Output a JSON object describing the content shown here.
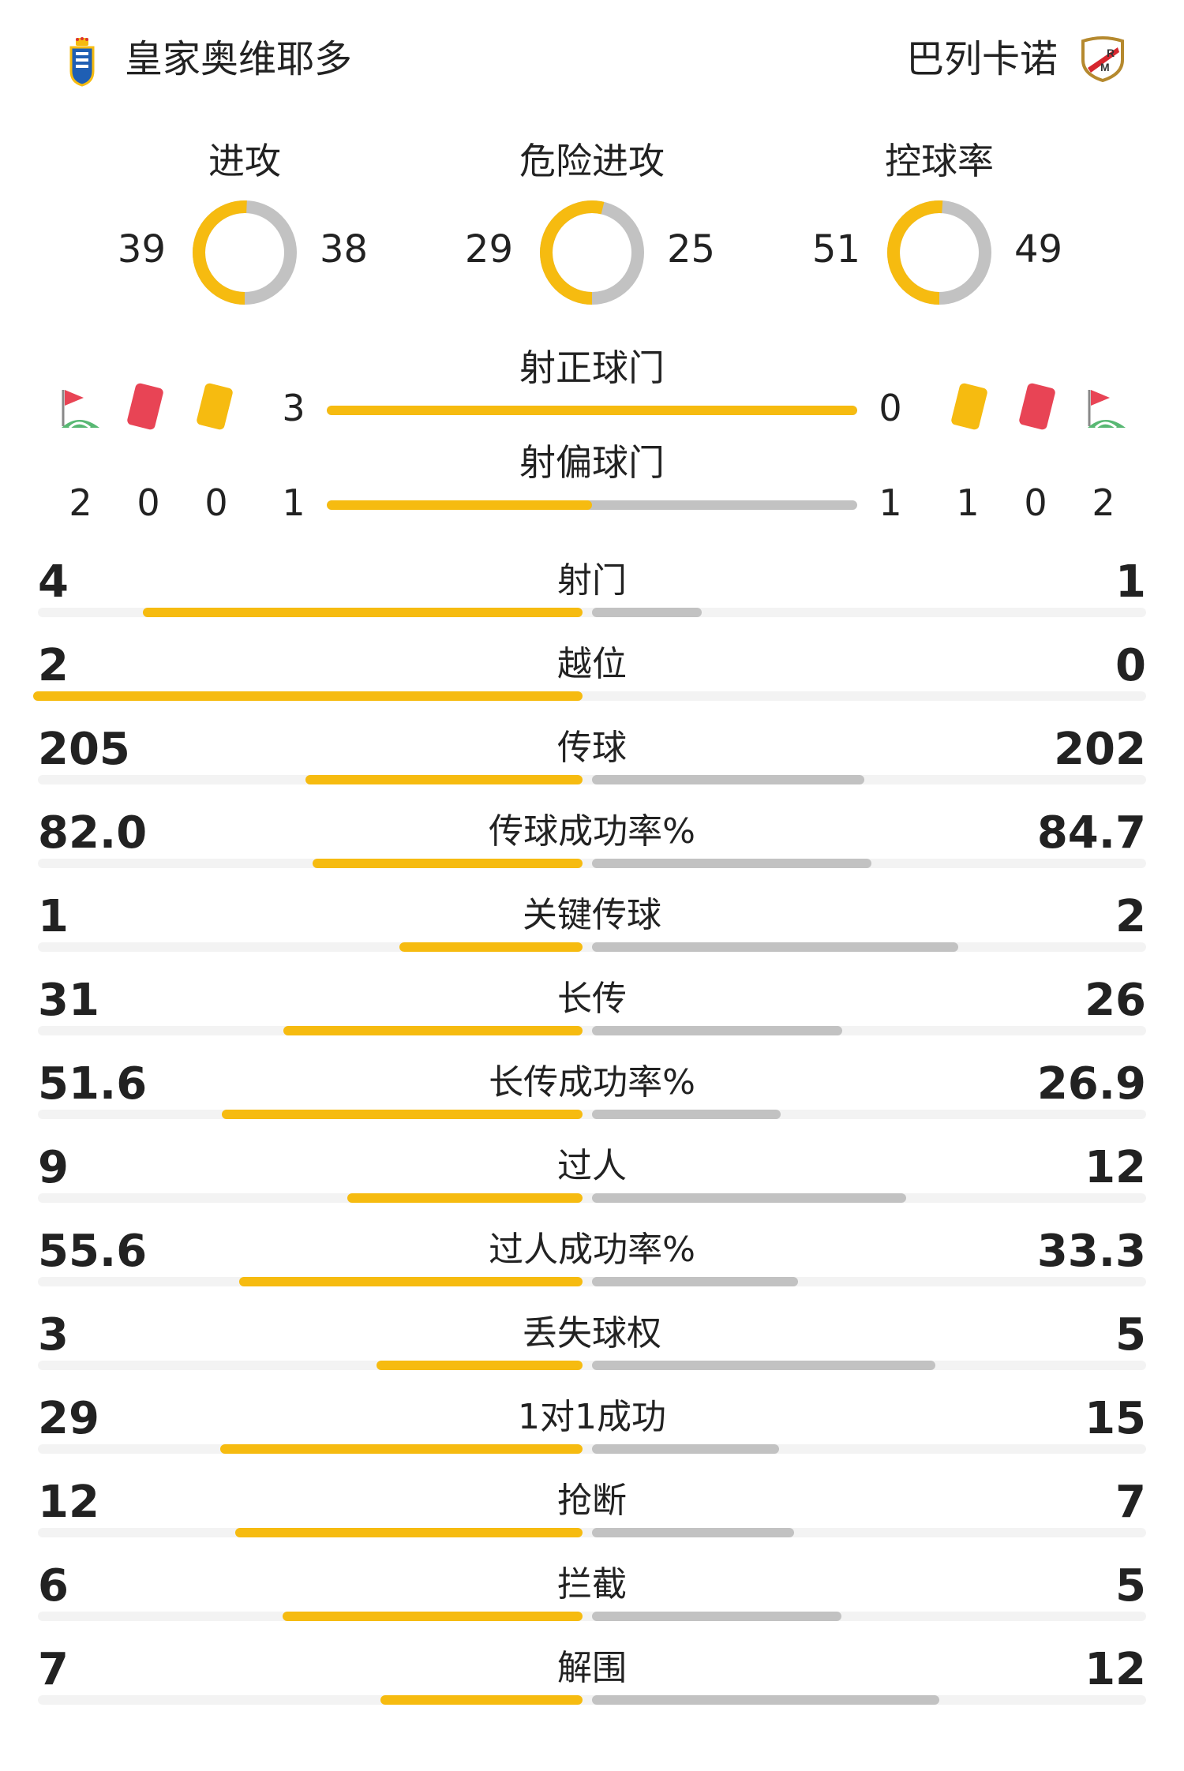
{
  "header": {
    "home_team": "皇家奥维耶多",
    "away_team": "巴列卡诺",
    "home_badge_icon": "real-oviedo-crest-icon",
    "away_badge_icon": "rayo-vallecano-crest-icon"
  },
  "colors": {
    "home": "#f6bb10",
    "away": "#c2c2c2",
    "red_card": "#e84455",
    "yellow_card": "#f6bb10"
  },
  "donuts": [
    {
      "label": "进攻",
      "home": "39",
      "away": "38",
      "home_value": 39,
      "away_value": 38
    },
    {
      "label": "危险进攻",
      "home": "29",
      "away": "25",
      "home_value": 29,
      "away_value": 25
    },
    {
      "label": "控球率",
      "home": "51",
      "away": "49",
      "home_value": 51,
      "away_value": 49
    }
  ],
  "shots_on_target": {
    "label": "射正球门",
    "home": "3",
    "away": "0",
    "home_value": 3,
    "away_value": 0
  },
  "shots_off_target": {
    "label": "射偏球门",
    "home": "1",
    "away": "1",
    "home_value": 1,
    "away_value": 1
  },
  "discipline": {
    "home": {
      "corners": "2",
      "red_cards": "0",
      "yellow_cards": "0"
    },
    "away": {
      "yellow_cards": "1",
      "red_cards": "0",
      "corners": "2"
    },
    "away_displayed": [
      "1",
      "0",
      "2"
    ]
  },
  "stats": [
    {
      "label": "射门",
      "home": "4",
      "away": "1",
      "home_value": 4,
      "away_value": 1
    },
    {
      "label": "越位",
      "home": "2",
      "away": "0",
      "home_value": 2,
      "away_value": 0
    },
    {
      "label": "传球",
      "home": "205",
      "away": "202",
      "home_value": 205,
      "away_value": 202
    },
    {
      "label": "传球成功率%",
      "home": "82.0",
      "away": "84.7",
      "home_value": 82.0,
      "away_value": 84.7
    },
    {
      "label": "关键传球",
      "home": "1",
      "away": "2",
      "home_value": 1,
      "away_value": 2
    },
    {
      "label": "长传",
      "home": "31",
      "away": "26",
      "home_value": 31,
      "away_value": 26
    },
    {
      "label": "长传成功率%",
      "home": "51.6",
      "away": "26.9",
      "home_value": 51.6,
      "away_value": 26.9
    },
    {
      "label": "过人",
      "home": "9",
      "away": "12",
      "home_value": 9,
      "away_value": 12
    },
    {
      "label": "过人成功率%",
      "home": "55.6",
      "away": "33.3",
      "home_value": 55.6,
      "away_value": 33.3
    },
    {
      "label": "丢失球权",
      "home": "3",
      "away": "5",
      "home_value": 3,
      "away_value": 5
    },
    {
      "label": "1对1成功",
      "home": "29",
      "away": "15",
      "home_value": 29,
      "away_value": 15
    },
    {
      "label": "抢断",
      "home": "12",
      "away": "7",
      "home_value": 12,
      "away_value": 7
    },
    {
      "label": "拦截",
      "home": "6",
      "away": "5",
      "home_value": 6,
      "away_value": 5
    },
    {
      "label": "解围",
      "home": "7",
      "away": "12",
      "home_value": 7,
      "away_value": 12
    }
  ]
}
